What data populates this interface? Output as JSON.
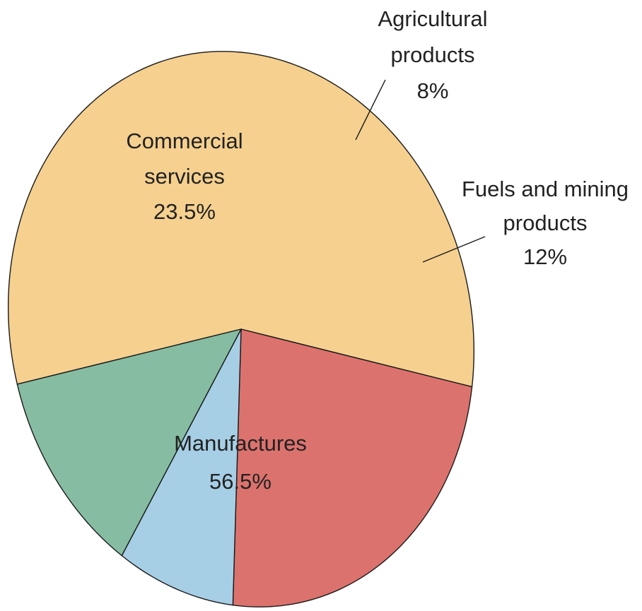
{
  "chart_data": {
    "type": "pie",
    "slices": [
      {
        "name": "Manufactures",
        "label_lines": [
          "Manufactures",
          "56.5%"
        ],
        "value": 56.5,
        "color": "#f5d08f"
      },
      {
        "name": "Commercial services",
        "label_lines": [
          "Commercial",
          "services",
          "23.5%"
        ],
        "value": 23.5,
        "color": "#dc726d"
      },
      {
        "name": "Agricultural products",
        "label_lines": [
          "Agricultural",
          "products",
          "8%"
        ],
        "value": 8,
        "color": "#a6cfe6"
      },
      {
        "name": "Fuels and mining products",
        "label_lines": [
          "Fuels and mining",
          "products",
          "12%"
        ],
        "value": 12,
        "color": "#86bda2"
      }
    ],
    "title": "",
    "legend": "none"
  }
}
